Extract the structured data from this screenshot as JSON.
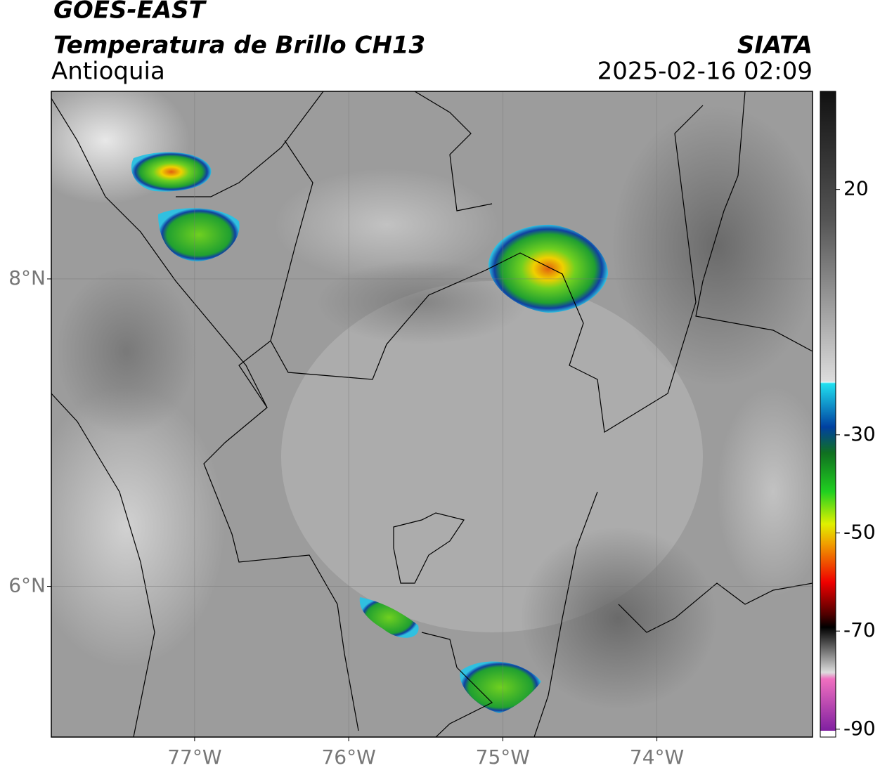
{
  "header": {
    "satellite": "GOES-EAST",
    "product": "Temperatura de Brillo CH13",
    "region": "Antioquia",
    "source": "SIATA",
    "datetime": "2025-02-16 02:09"
  },
  "map": {
    "xlim": [
      -77.93,
      -72.99
    ],
    "ylim": [
      5.02,
      9.22
    ],
    "xticks": [
      {
        "value": -77,
        "label": "77°W"
      },
      {
        "value": -76,
        "label": "76°W"
      },
      {
        "value": -75,
        "label": "75°W"
      },
      {
        "value": -74,
        "label": "74°W"
      }
    ],
    "yticks": [
      {
        "value": 6,
        "label": "6°N"
      },
      {
        "value": 8,
        "label": "8°N"
      }
    ],
    "grid": true
  },
  "colorbar": {
    "lim": [
      -91.6,
      40
    ],
    "ticks": [
      20,
      -30,
      -50,
      -70,
      -90
    ]
  }
}
